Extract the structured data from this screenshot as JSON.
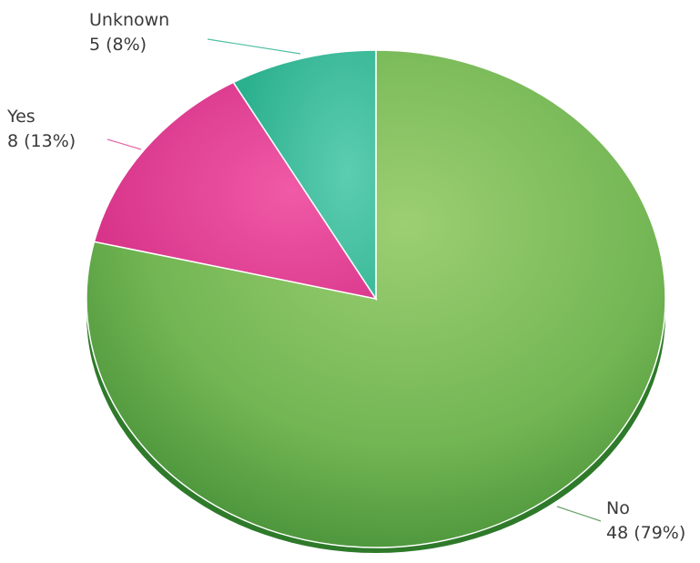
{
  "chart_data": {
    "type": "pie",
    "slices": [
      {
        "label": "No",
        "value": 48,
        "percent": "79%",
        "display": "48 (79%)",
        "color": "#6db34f"
      },
      {
        "label": "Yes",
        "value": 8,
        "percent": "13%",
        "display": "8 (13%)",
        "color": "#e03a8f"
      },
      {
        "label": "Unknown",
        "value": 5,
        "percent": "8%",
        "display": "5 (8%)",
        "color": "#3cbf9c"
      }
    ],
    "start_angle": "12 o'clock",
    "direction": "clockwise",
    "style": "3D shaded",
    "legend": "none"
  }
}
